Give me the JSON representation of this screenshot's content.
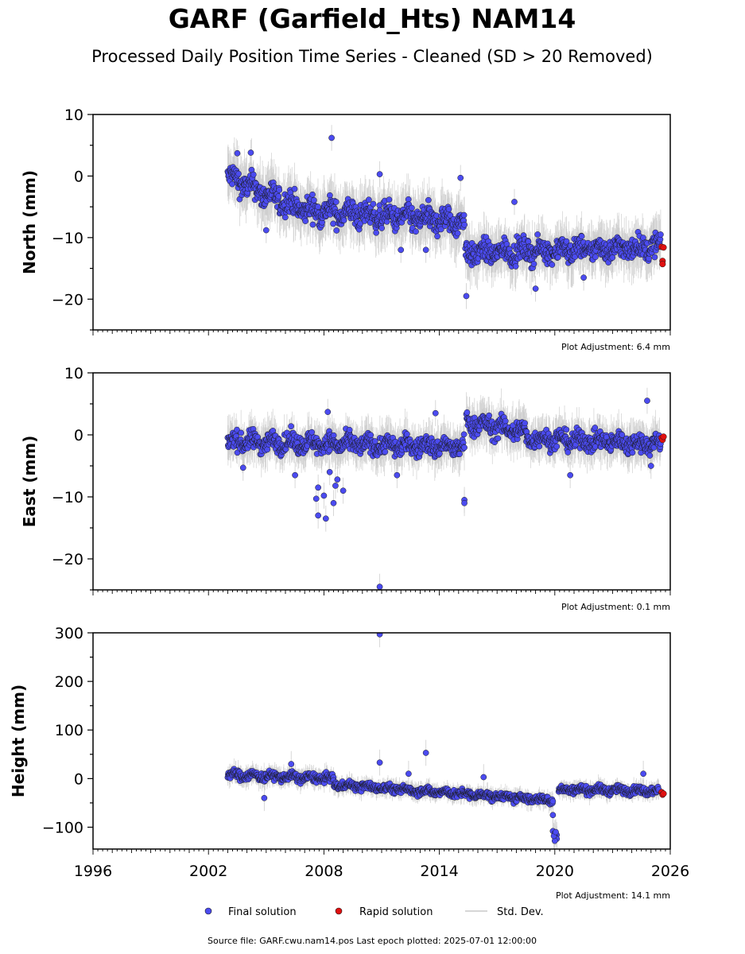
{
  "chart_data": {
    "type": "scatter",
    "title": "GARF (Garfield_Hts) NAM14",
    "subtitle": "Processed Daily Position Time Series - Cleaned (SD > 20 Removed)",
    "xlim": [
      1996,
      2026
    ],
    "xticks": [
      "1996",
      "2002",
      "2008",
      "2014",
      "2020",
      "2026"
    ],
    "colors": {
      "final": "#4b4bf0",
      "rapid": "#e01010",
      "std_dev": "#c8c8c8",
      "edge": "#1a1a1a"
    },
    "panels": [
      {
        "ylabel": "North (mm)",
        "ylim": [
          -25,
          10
        ],
        "yticks": [
          "10",
          "0",
          "−10",
          "−20"
        ],
        "adjustment": "Plot Adjustment: 6.4 mm",
        "segments": [
          {
            "x0": 2003.0,
            "x1": 2005.0,
            "y0": 0.0,
            "y1": -3.0,
            "spread": 2.0
          },
          {
            "x0": 2005.0,
            "x1": 2007.0,
            "y0": -3.0,
            "y1": -5.5,
            "spread": 2.0
          },
          {
            "x0": 2007.0,
            "x1": 2015.3,
            "y0": -5.5,
            "y1": -7.5,
            "spread": 2.0
          },
          {
            "x0": 2015.35,
            "x1": 2025.5,
            "y0": -12.5,
            "y1": -11.5,
            "spread": 1.8
          }
        ],
        "outliers": [
          [
            2008.4,
            6.2
          ],
          [
            2003.5,
            3.7
          ],
          [
            2004.2,
            3.8
          ],
          [
            2010.9,
            0.3
          ],
          [
            2015.1,
            -0.3
          ],
          [
            2015.4,
            -19.5
          ],
          [
            2019.0,
            -18.3
          ],
          [
            2017.9,
            -4.2
          ],
          [
            2021.5,
            -16.5
          ],
          [
            2005.0,
            -8.8
          ],
          [
            2012.0,
            -12.0
          ],
          [
            2013.3,
            -12.0
          ]
        ],
        "rapid": [
          [
            2025.55,
            -11.5
          ],
          [
            2025.6,
            -13.8
          ],
          [
            2025.6,
            -14.3
          ],
          [
            2025.65,
            -11.6
          ]
        ]
      },
      {
        "ylabel": "East (mm)",
        "ylim": [
          -25,
          10
        ],
        "yticks": [
          "10",
          "0",
          "−10",
          "−20"
        ],
        "adjustment": "Plot Adjustment: 0.1 mm",
        "segments": [
          {
            "x0": 2003.0,
            "x1": 2015.3,
            "y0": -1.0,
            "y1": -2.0,
            "spread": 1.5
          },
          {
            "x0": 2015.4,
            "x1": 2018.5,
            "y0": 2.0,
            "y1": 0.5,
            "spread": 1.6
          },
          {
            "x0": 2018.5,
            "x1": 2025.5,
            "y0": -0.5,
            "y1": -1.5,
            "spread": 1.5
          }
        ],
        "outliers": [
          [
            2010.9,
            -24.5
          ],
          [
            2007.7,
            -13.0
          ],
          [
            2008.1,
            -13.5
          ],
          [
            2007.6,
            -10.3
          ],
          [
            2008.0,
            -9.8
          ],
          [
            2008.5,
            -11.0
          ],
          [
            2008.6,
            -8.2
          ],
          [
            2009.0,
            -9.0
          ],
          [
            2008.7,
            -7.2
          ],
          [
            2007.7,
            -8.5
          ],
          [
            2008.3,
            -6.0
          ],
          [
            2015.3,
            -10.5
          ],
          [
            2015.3,
            -11.0
          ],
          [
            2013.8,
            3.5
          ],
          [
            2008.2,
            3.7
          ],
          [
            2006.5,
            -6.5
          ],
          [
            2020.8,
            -6.5
          ],
          [
            2024.8,
            5.5
          ],
          [
            2025.0,
            -5.0
          ],
          [
            2003.8,
            -5.3
          ],
          [
            2011.8,
            -6.5
          ]
        ],
        "rapid": [
          [
            2025.55,
            -0.5
          ],
          [
            2025.6,
            -0.8
          ],
          [
            2025.65,
            -0.3
          ]
        ]
      },
      {
        "ylabel": "Height (mm)",
        "ylim": [
          -145,
          300
        ],
        "yticks": [
          "300",
          "200",
          "100",
          "0",
          "−100"
        ],
        "adjustment": "Plot Adjustment: 14.1 mm",
        "segments": [
          {
            "x0": 2003.0,
            "x1": 2008.5,
            "y0": 8.0,
            "y1": 0.0,
            "spread": 9.0
          },
          {
            "x0": 2008.5,
            "x1": 2019.9,
            "y0": -12.0,
            "y1": -45.0,
            "spread": 8.0
          },
          {
            "x0": 2020.2,
            "x1": 2025.4,
            "y0": -22.0,
            "y1": -25.0,
            "spread": 8.0
          }
        ],
        "outliers": [
          [
            2010.9,
            297
          ],
          [
            2010.9,
            33
          ],
          [
            2013.3,
            53
          ],
          [
            2006.3,
            30
          ],
          [
            2004.9,
            -40
          ],
          [
            2019.9,
            -75
          ],
          [
            2019.9,
            -108
          ],
          [
            2020.0,
            -112
          ],
          [
            2020.1,
            -116
          ],
          [
            2020.0,
            -120
          ],
          [
            2020.1,
            -124
          ],
          [
            2020.0,
            -128
          ],
          [
            2019.95,
            -118
          ],
          [
            2020.05,
            -110
          ],
          [
            2016.3,
            3.0
          ],
          [
            2024.6,
            10.0
          ],
          [
            2012.4,
            10.0
          ]
        ],
        "rapid": [
          [
            2025.55,
            -28
          ],
          [
            2025.6,
            -33
          ],
          [
            2025.65,
            -31
          ]
        ]
      }
    ],
    "legend": {
      "position": "bottom-center",
      "final": "Final solution",
      "rapid": "Rapid solution",
      "std": "Std. Dev."
    },
    "footer": "Source file: GARF.cwu.nam14.pos  Last epoch plotted: 2025-07-01 12:00:00"
  }
}
